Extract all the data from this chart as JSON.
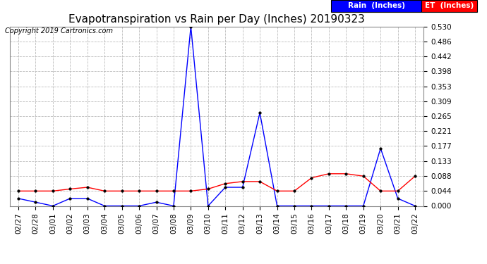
{
  "title": "Evapotranspiration vs Rain per Day (Inches) 20190323",
  "copyright": "Copyright 2019 Cartronics.com",
  "legend_rain": "Rain  (Inches)",
  "legend_et": "ET  (Inches)",
  "x_labels": [
    "02/27",
    "02/28",
    "03/01",
    "03/02",
    "03/03",
    "03/04",
    "03/05",
    "03/06",
    "03/07",
    "03/08",
    "03/09",
    "03/10",
    "03/11",
    "03/12",
    "03/13",
    "03/14",
    "03/15",
    "03/16",
    "03/17",
    "03/18",
    "03/19",
    "03/20",
    "03/21",
    "03/22"
  ],
  "rain_values": [
    0.022,
    0.011,
    0.0,
    0.022,
    0.022,
    0.0,
    0.0,
    0.0,
    0.011,
    0.0,
    0.53,
    0.0,
    0.055,
    0.055,
    0.275,
    0.0,
    0.0,
    0.0,
    0.0,
    0.0,
    0.0,
    0.17,
    0.022,
    0.0
  ],
  "et_values": [
    0.044,
    0.044,
    0.044,
    0.05,
    0.055,
    0.044,
    0.044,
    0.044,
    0.044,
    0.044,
    0.044,
    0.05,
    0.066,
    0.072,
    0.072,
    0.044,
    0.044,
    0.083,
    0.095,
    0.095,
    0.088,
    0.044,
    0.044,
    0.088
  ],
  "rain_color": "#0000ff",
  "et_color": "#ff0000",
  "y_ticks": [
    0.0,
    0.044,
    0.088,
    0.133,
    0.177,
    0.221,
    0.265,
    0.309,
    0.353,
    0.398,
    0.442,
    0.486,
    0.53
  ],
  "ylim": [
    0.0,
    0.53
  ],
  "background_color": "#ffffff",
  "grid_color": "#bbbbbb",
  "title_fontsize": 11,
  "legend_fontsize": 7.5,
  "tick_fontsize": 7.5,
  "copyright_fontsize": 7.0
}
